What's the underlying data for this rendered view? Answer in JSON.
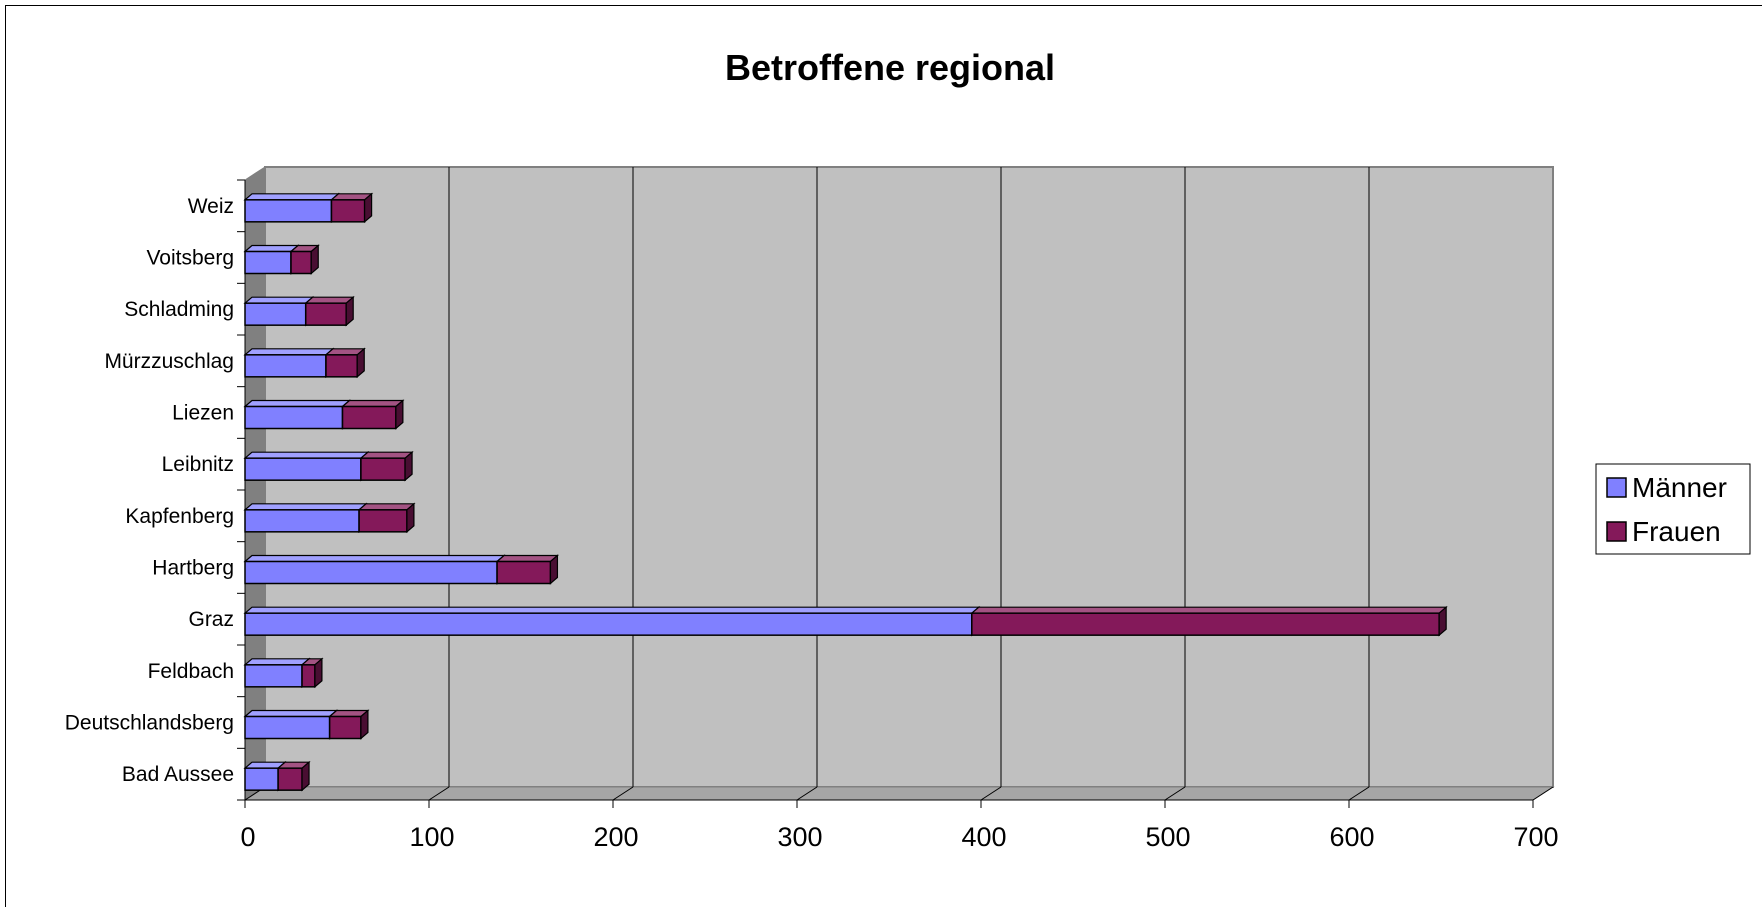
{
  "chart_data": {
    "type": "bar",
    "orientation": "horizontal",
    "stacked": true,
    "title": "Betroffene regional",
    "xlabel": "",
    "ylabel": "",
    "categories": [
      "Bad Aussee",
      "Deutschlandsberg",
      "Feldbach",
      "Graz",
      "Hartberg",
      "Kapfenberg",
      "Leibnitz",
      "Liezen",
      "Mürzzuschlag",
      "Schladming",
      "Voitsberg",
      "Weiz"
    ],
    "series": [
      {
        "name": "Männer",
        "color": "#8080ff",
        "values": [
          18,
          46,
          31,
          395,
          137,
          62,
          63,
          53,
          44,
          33,
          25,
          47
        ]
      },
      {
        "name": "Frauen",
        "color": "#84195a",
        "values": [
          13,
          17,
          7,
          254,
          29,
          26,
          24,
          29,
          17,
          22,
          11,
          18
        ]
      }
    ],
    "xlim": [
      0,
      700
    ],
    "xticks": [
      0,
      100,
      200,
      300,
      400,
      500,
      600,
      700
    ],
    "grid": true,
    "legend_position": "right",
    "plot_background": "#c0c0c0"
  }
}
